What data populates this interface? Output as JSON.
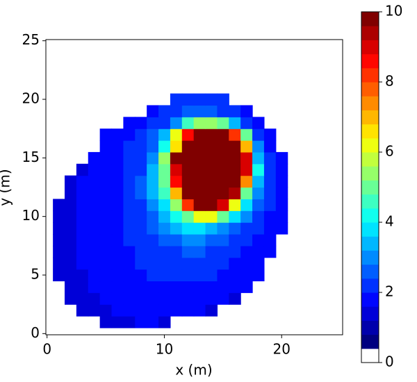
{
  "chart_data": {
    "type": "heatmap",
    "xlabel": "x (m)",
    "ylabel": "y (m)",
    "x": [
      1,
      2,
      3,
      4,
      5,
      6,
      7,
      8,
      9,
      10,
      11,
      12,
      13,
      14,
      15,
      16,
      17,
      18,
      19,
      20
    ],
    "y": [
      1,
      2,
      3,
      4,
      5,
      6,
      7,
      8,
      9,
      10,
      11,
      12,
      13,
      14,
      15,
      16,
      17,
      18,
      19,
      20
    ],
    "z": [
      [
        null,
        null,
        null,
        null,
        1.4,
        1.5,
        1.5,
        1.6,
        1.6,
        1.5,
        null,
        null,
        null,
        null,
        null,
        null,
        null,
        null,
        null,
        null
      ],
      [
        null,
        null,
        1.4,
        1.5,
        1.5,
        1.6,
        1.6,
        1.7,
        1.7,
        1.7,
        1.7,
        1.6,
        1.6,
        1.5,
        null,
        null,
        null,
        null,
        null,
        null
      ],
      [
        null,
        1.4,
        1.5,
        1.5,
        1.6,
        1.6,
        1.7,
        1.7,
        1.8,
        1.8,
        1.8,
        1.8,
        1.7,
        1.7,
        1.6,
        1.5,
        null,
        null,
        null,
        null
      ],
      [
        null,
        1.5,
        1.5,
        1.6,
        1.6,
        1.7,
        1.8,
        1.8,
        1.9,
        1.9,
        1.9,
        1.9,
        1.9,
        1.8,
        1.8,
        1.7,
        1.6,
        null,
        null,
        null
      ],
      [
        1.4,
        1.5,
        1.5,
        1.6,
        1.7,
        1.7,
        1.8,
        1.9,
        2.0,
        2.0,
        2.1,
        2.1,
        2.0,
        2.0,
        1.9,
        1.8,
        1.7,
        1.6,
        null,
        null
      ],
      [
        1.5,
        1.5,
        1.6,
        1.6,
        1.7,
        1.8,
        1.9,
        2.0,
        2.1,
        2.1,
        2.2,
        2.2,
        2.2,
        2.1,
        2.0,
        1.9,
        1.8,
        1.6,
        null,
        null
      ],
      [
        1.5,
        1.5,
        1.6,
        1.6,
        1.7,
        1.8,
        1.9,
        2.0,
        2.2,
        2.3,
        2.4,
        2.5,
        2.5,
        2.4,
        2.2,
        2.1,
        1.9,
        1.8,
        1.6,
        null
      ],
      [
        1.5,
        1.5,
        1.6,
        1.6,
        1.7,
        1.8,
        2.0,
        2.1,
        2.3,
        2.6,
        2.8,
        3.0,
        3.0,
        2.8,
        2.6,
        2.2,
        2.1,
        1.9,
        1.7,
        null
      ],
      [
        1.5,
        1.5,
        1.6,
        1.7,
        1.8,
        1.9,
        2.0,
        2.2,
        2.5,
        2.9,
        3.3,
        3.6,
        3.7,
        3.5,
        3.1,
        2.7,
        2.2,
        2.0,
        1.8,
        1.6
      ],
      [
        1.5,
        1.5,
        1.6,
        1.7,
        1.8,
        1.9,
        2.1,
        2.3,
        2.8,
        3.3,
        4.0,
        5.0,
        6.0,
        6.0,
        5.0,
        3.8,
        2.9,
        2.2,
        1.9,
        1.7
      ],
      [
        1.5,
        1.5,
        1.6,
        1.7,
        1.8,
        1.9,
        2.1,
        2.4,
        3.0,
        3.8,
        5.5,
        8,
        10,
        10,
        9,
        6,
        3.8,
        2.6,
        2.0,
        1.7
      ],
      [
        null,
        1.5,
        1.6,
        1.7,
        1.8,
        1.9,
        2.1,
        2.5,
        3.2,
        4.5,
        7,
        10,
        10,
        10,
        10,
        9.5,
        5,
        3.0,
        2.1,
        1.8
      ],
      [
        null,
        1.5,
        1.6,
        1.7,
        1.8,
        1.9,
        2.1,
        2.5,
        3.3,
        5.0,
        8.5,
        10,
        10,
        10,
        10,
        10,
        7.5,
        3.5,
        2.2,
        1.8
      ],
      [
        null,
        null,
        1.5,
        1.6,
        1.7,
        1.9,
        2.1,
        2.4,
        3.2,
        5.0,
        9,
        10,
        10,
        10,
        10,
        10,
        9,
        4.0,
        2.2,
        1.8
      ],
      [
        null,
        null,
        null,
        1.6,
        1.7,
        1.8,
        2.0,
        2.3,
        3.0,
        5.5,
        10,
        10,
        10,
        10,
        10,
        10,
        9,
        3.5,
        2.1,
        1.7
      ],
      [
        null,
        null,
        null,
        null,
        1.6,
        1.8,
        2.0,
        2.2,
        2.8,
        4.0,
        6.5,
        10,
        10,
        10,
        10,
        10,
        7.0,
        3.0,
        1.9,
        null
      ],
      [
        null,
        null,
        null,
        null,
        1.6,
        1.8,
        1.9,
        2.1,
        2.6,
        3.5,
        6.0,
        8.5,
        10,
        10,
        10,
        8,
        5.0,
        2.4,
        1.8,
        null
      ],
      [
        null,
        null,
        null,
        null,
        null,
        null,
        1.7,
        1.9,
        2.1,
        2.4,
        3.0,
        4.5,
        5.5,
        5.5,
        5.0,
        3.5,
        2.2,
        1.8,
        null,
        null
      ],
      [
        null,
        null,
        null,
        null,
        null,
        null,
        null,
        null,
        1.8,
        2.0,
        2.2,
        2.6,
        2.6,
        2.6,
        2.4,
        2.1,
        1.8,
        null,
        null,
        null
      ],
      [
        null,
        null,
        null,
        null,
        null,
        null,
        null,
        null,
        null,
        null,
        2.0,
        2.1,
        2.1,
        2.1,
        2.0,
        null,
        null,
        null,
        null,
        null
      ]
    ],
    "xlim": [
      -0.1,
      25.2
    ],
    "ylim": [
      -0.1,
      25.1
    ],
    "xticks": [
      0,
      10,
      20
    ],
    "yticks": [
      0,
      5,
      10,
      15,
      20,
      25
    ],
    "colormap": "jet",
    "clim": [
      0,
      10
    ],
    "levels": 25,
    "lowest_level_color": "#ffffff",
    "colorbar_ticks": [
      0,
      2,
      4,
      6,
      8,
      10
    ]
  }
}
